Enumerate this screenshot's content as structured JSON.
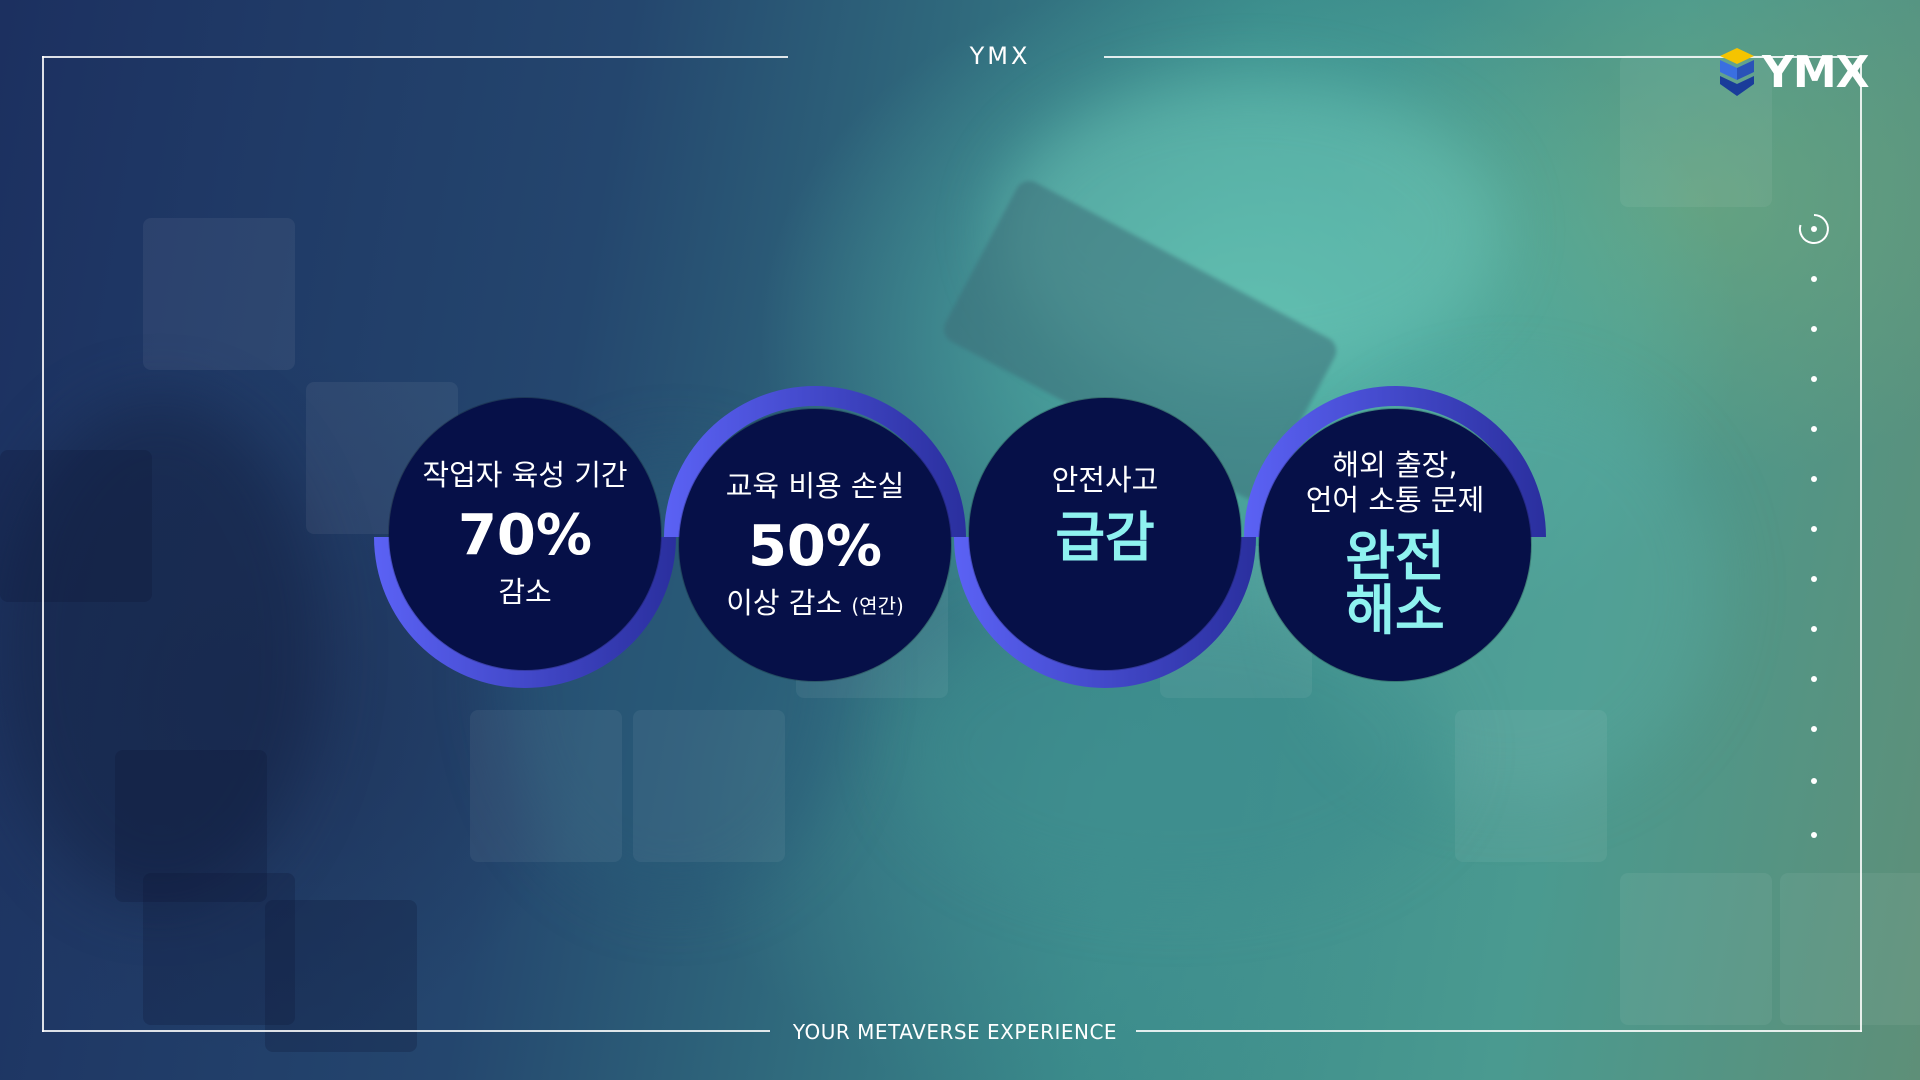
{
  "header": {
    "title": "YMX"
  },
  "footer": {
    "tagline": "YOUR METAVERSE EXPERIENCE"
  },
  "logo": {
    "text": "YMX",
    "icon": "ymx-cube-logo-icon"
  },
  "colors": {
    "disc": "#061048",
    "ring_light": "#5b62f5",
    "ring_dark": "#2a2f9e",
    "highlight_text": "#8ef2f0"
  },
  "nav": {
    "icon": "refresh-icon",
    "dot_count": 12
  },
  "stats": [
    {
      "label": "작업자 육성 기간",
      "value": "70%",
      "sub": "감소",
      "sub_note": ""
    },
    {
      "label": "교육 비용 손실",
      "value": "50%",
      "sub": "이상 감소",
      "sub_note": "(연간)"
    },
    {
      "label": "안전사고",
      "value": "급감"
    },
    {
      "label_line1": "해외 출장,",
      "label_line2": "언어 소통 문제",
      "value_line1": "완전",
      "value_line2": "해소"
    }
  ]
}
